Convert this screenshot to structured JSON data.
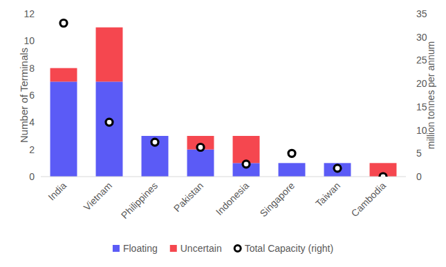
{
  "chart_data": {
    "type": "bar",
    "stacked": true,
    "categories": [
      "India",
      "Vietnam",
      "Philippines",
      "Pakistan",
      "Indonesia",
      "Singapore",
      "Taiwan",
      "Cambodia"
    ],
    "series": [
      {
        "name": "Floating",
        "color": "#5b5bf6",
        "values": [
          7,
          7,
          3,
          2,
          1,
          1,
          1,
          0
        ]
      },
      {
        "name": "Uncertain",
        "color": "#f5474f",
        "values": [
          1,
          4,
          0,
          1,
          2,
          0,
          0,
          1
        ]
      },
      {
        "name": "Total Capacity (right)",
        "type": "scatter",
        "marker": "circle",
        "color": "#000000",
        "axis": "y2",
        "values": [
          33,
          11.7,
          7.4,
          6.3,
          2.7,
          5,
          1.8,
          0
        ]
      }
    ],
    "ylim": [
      0,
      12
    ],
    "yticks": [
      0,
      2,
      4,
      6,
      8,
      10,
      12
    ],
    "y2lim": [
      0,
      35
    ],
    "y2ticks": [
      0,
      5,
      10,
      15,
      20,
      25,
      30,
      35
    ],
    "y_label": "Number of Terminals",
    "y2_label": "million tonnes per annum",
    "legend": "bottom",
    "grid": false
  }
}
